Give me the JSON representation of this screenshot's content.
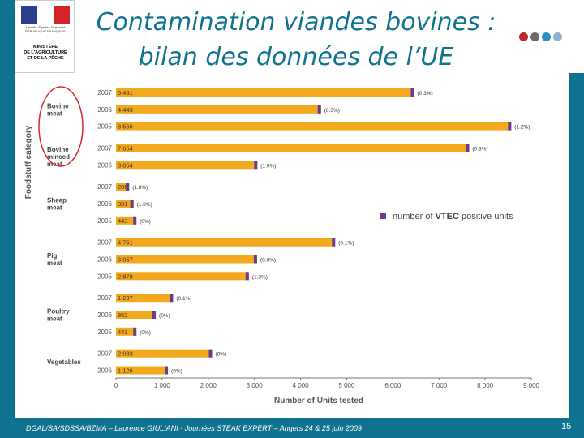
{
  "slide": {
    "title_line1": "Contamination viandes bovines :",
    "title_line2": "bilan des données de l’UE",
    "footer": "DGAL/SA/SDSSA/BZMA – Laurence GIULIANI - Journées STEAK EXPERT – Angers 24 & 25 juin 2009",
    "page_number": "15",
    "colors": {
      "band": "#0f7390",
      "title": "#0f7390",
      "dots": [
        "#c0272d",
        "#6b6b6b",
        "#2e8fc7",
        "#8fb4cf"
      ]
    }
  },
  "logo": {
    "caption": "Liberté · Égalité · Fraternité  RÉPUBLIQUE FRANÇAISE",
    "ministry_lines": [
      "MINISTÈRE",
      "DE L'AGRICULTURE",
      "ET DE LA PÊCHE"
    ],
    "flag_colors": [
      "#2b3f8c",
      "#ffffff",
      "#d3242c"
    ]
  },
  "chart_data": {
    "type": "bar",
    "orientation": "horizontal",
    "xlabel": "Number of Units tested",
    "ylabel": "Foodstuff category",
    "xlim": [
      0,
      9000
    ],
    "xticks": [
      "0",
      "1 000",
      "2 000",
      "3 000",
      "4 000",
      "5 000",
      "6 000",
      "7 000",
      "8 000",
      "9 000"
    ],
    "legend": {
      "label_prefix": "number of ",
      "label_bold": "VTEC",
      "label_suffix": " positive units",
      "position": "right-middle"
    },
    "bar_color": "#f2a91d",
    "positive_color": "#6a3c8f",
    "highlight": "Bovine meat, Bovine minced meat",
    "groups": [
      {
        "name": "Bovine meat",
        "rows": [
          {
            "year": "2007",
            "tested": 6461,
            "label": "6 461",
            "pct": "(0.3%)"
          },
          {
            "year": "2006",
            "tested": 4443,
            "label": "4 443",
            "pct": "(0.3%)"
          },
          {
            "year": "2005",
            "tested": 8566,
            "label": "8 566",
            "pct": "(1.2%)"
          }
        ]
      },
      {
        "name": "Bovine minced meat",
        "rows": [
          {
            "year": "2007",
            "tested": 7654,
            "label": "7 654",
            "pct": "(0.3%)"
          },
          {
            "year": "2006",
            "tested": 3064,
            "label": "3 064",
            "pct": "(1.9%)"
          }
        ]
      },
      {
        "name": "Sheep meat",
        "rows": [
          {
            "year": "2007",
            "tested": 285,
            "label": "285",
            "pct": "(1.8%)"
          },
          {
            "year": "2006",
            "tested": 381,
            "label": "381",
            "pct": "(1.8%)"
          },
          {
            "year": "2005",
            "tested": 443,
            "label": "443",
            "pct": "(0%)"
          }
        ]
      },
      {
        "name": "Pig meat",
        "rows": [
          {
            "year": "2007",
            "tested": 4751,
            "label": "4 751",
            "pct": "(0.1%)"
          },
          {
            "year": "2006",
            "tested": 3057,
            "label": "3 057",
            "pct": "(0.8%)"
          },
          {
            "year": "2005",
            "tested": 2879,
            "label": "2 879",
            "pct": "(1.3%)"
          }
        ]
      },
      {
        "name": "Poultry meat",
        "rows": [
          {
            "year": "2007",
            "tested": 1237,
            "label": "1 237",
            "pct": "(0.1%)"
          },
          {
            "year": "2006",
            "tested": 862,
            "label": "862",
            "pct": "(0%)"
          },
          {
            "year": "2005",
            "tested": 443,
            "label": "443",
            "pct": "(0%)"
          }
        ]
      },
      {
        "name": "Vegetables",
        "rows": [
          {
            "year": "2007",
            "tested": 2083,
            "label": "2 083",
            "pct": "(0%)"
          },
          {
            "year": "2006",
            "tested": 1126,
            "label": "1 126",
            "pct": "(0%)"
          }
        ]
      }
    ]
  }
}
